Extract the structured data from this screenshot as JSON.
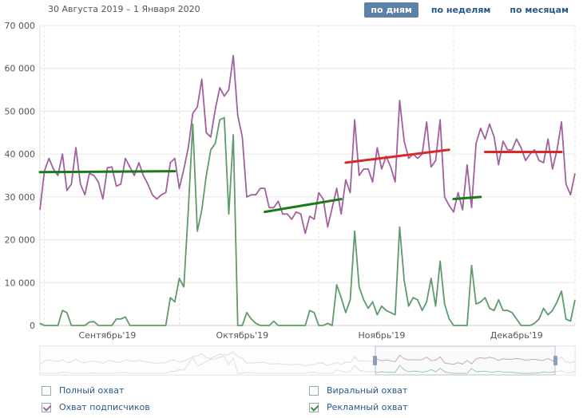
{
  "header": {
    "date_range": "30 Августа 2019 – 1 Января 2020",
    "tabs": [
      {
        "label": "по дням",
        "active": true
      },
      {
        "label": "по неделям",
        "active": false
      },
      {
        "label": "по месяцам",
        "active": false
      }
    ]
  },
  "colors": {
    "subscribers": "#a0619e",
    "ads": "#5e9a6a",
    "trend_green": "#1a7a1a",
    "trend_red": "#d42a2a",
    "grid": "#e6e6e6"
  },
  "chart_data": {
    "type": "line",
    "ylim": [
      0,
      70000
    ],
    "yticks": [
      "0",
      "10 000",
      "20 000",
      "30 000",
      "40 000",
      "50 000",
      "60 000",
      "70 000"
    ],
    "x_month_labels": [
      {
        "label": "Сентябрь'19",
        "day_index": 15
      },
      {
        "label": "Октябрь'19",
        "day_index": 45
      },
      {
        "label": "Ноябрь'19",
        "day_index": 76
      },
      {
        "label": "Декабрь'19",
        "day_index": 106
      }
    ],
    "series": [
      {
        "name": "Охват подписчиков",
        "color": "#a0619e",
        "values": [
          27000,
          36000,
          39000,
          36500,
          35000,
          40000,
          31500,
          33000,
          41500,
          33000,
          30500,
          35500,
          35000,
          33500,
          29500,
          36800,
          37000,
          32500,
          33000,
          39000,
          37000,
          35000,
          38000,
          35000,
          33000,
          30500,
          29500,
          30500,
          31000,
          38000,
          39000,
          32000,
          36500,
          41500,
          49500,
          51000,
          57500,
          45000,
          44000,
          50500,
          55500,
          53500,
          55000,
          63000,
          49000,
          44000,
          30000,
          30500,
          30500,
          32000,
          32000,
          27500,
          27500,
          29000,
          26000,
          26000,
          24800,
          26500,
          26000,
          21500,
          25500,
          24800,
          31000,
          29500,
          23000,
          27500,
          32000,
          26000,
          34000,
          31000,
          48000,
          35000,
          36500,
          36500,
          33500,
          41500,
          36500,
          39500,
          37000,
          33500,
          52500,
          43000,
          39000,
          40000,
          39000,
          40000,
          47500,
          37000,
          38500,
          48000,
          30000,
          28000,
          26500,
          31000,
          27000,
          37500,
          27500,
          42500,
          46000,
          43500,
          47000,
          44000,
          37500,
          43000,
          41000,
          41000,
          43500,
          41500,
          38500,
          40000,
          41000,
          38500,
          38000,
          43500,
          36500,
          41000,
          47500,
          33000,
          30500,
          35500
        ]
      },
      {
        "name": "Рекламный охват",
        "color": "#5e9a6a",
        "values": [
          500,
          0,
          0,
          0,
          0,
          3500,
          3000,
          0,
          0,
          0,
          0,
          800,
          900,
          0,
          0,
          0,
          0,
          1500,
          1500,
          2000,
          0,
          0,
          0,
          0,
          0,
          0,
          0,
          0,
          0,
          6500,
          5500,
          11000,
          9000,
          27000,
          47000,
          22000,
          27000,
          35000,
          41000,
          42500,
          48000,
          48500,
          26000,
          44500,
          0,
          0,
          3000,
          1500,
          500,
          0,
          0,
          0,
          1000,
          0,
          0,
          0,
          0,
          0,
          0,
          0,
          3500,
          3000,
          0,
          0,
          500,
          0,
          9500,
          6500,
          3000,
          6000,
          22000,
          9000,
          6000,
          4000,
          5500,
          2500,
          4500,
          3500,
          3000,
          2500,
          23000,
          10500,
          4500,
          6500,
          6000,
          3500,
          5500,
          11000,
          4500,
          15000,
          5000,
          1500,
          0,
          0,
          0,
          0,
          14000,
          5000,
          5500,
          6500,
          4000,
          3500,
          6000,
          3500,
          3500,
          3000,
          1500,
          0,
          0,
          0,
          500,
          1500,
          4000,
          2500,
          3500,
          5500,
          8000,
          1500,
          1000,
          6000
        ]
      }
    ],
    "trend_lines": [
      {
        "color": "green",
        "from": [
          0,
          35800
        ],
        "to": [
          30,
          36000
        ]
      },
      {
        "color": "green",
        "from": [
          50,
          26500
        ],
        "to": [
          67,
          29500
        ]
      },
      {
        "color": "red",
        "from": [
          68,
          38000
        ],
        "to": [
          91,
          41000
        ]
      },
      {
        "color": "green",
        "from": [
          92,
          29500
        ],
        "to": [
          98,
          30000
        ]
      },
      {
        "color": "red",
        "from": [
          99,
          40500
        ],
        "to": [
          116,
          40500
        ]
      }
    ]
  },
  "legend": [
    {
      "label": "Полный охват",
      "checked": false,
      "color": "#9aa"
    },
    {
      "label": "Охват подписчиков",
      "checked": true,
      "color": "#a0619e"
    },
    {
      "label": "Виральный охват",
      "checked": false,
      "color": "#5e9a6a"
    },
    {
      "label": "Рекламный охват",
      "checked": true,
      "color": "#5e9a6a"
    }
  ]
}
